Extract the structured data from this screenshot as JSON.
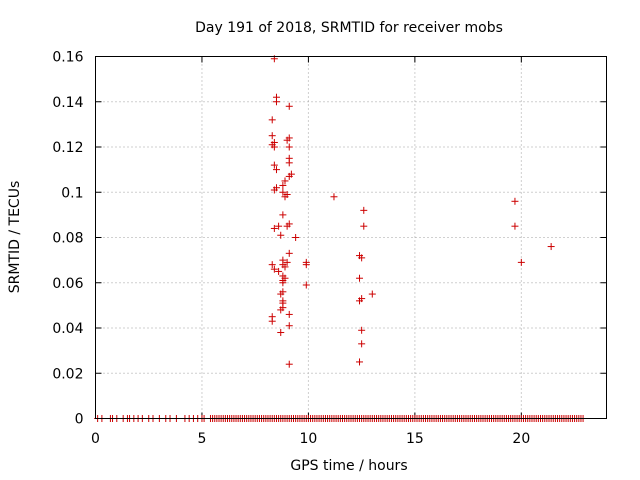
{
  "chart_data": {
    "type": "scatter",
    "title": "Day 191 of 2018, SRMTID for receiver mobs",
    "xlabel": "GPS time / hours",
    "ylabel": "SRMTID / TECUs",
    "xlim": [
      0,
      24
    ],
    "ylim": [
      0,
      0.16
    ],
    "x_ticks": [
      0,
      5,
      10,
      15,
      20
    ],
    "x_tick_labels": [
      "0",
      "5",
      "10",
      "15",
      "20"
    ],
    "y_ticks": [
      0,
      0.02,
      0.04,
      0.06,
      0.08,
      0.1,
      0.12,
      0.14,
      0.16
    ],
    "y_tick_labels": [
      "0",
      "0.02",
      "0.04",
      "0.06",
      "0.08",
      "0.1",
      "0.12",
      "0.14",
      "0.16"
    ],
    "grid": true,
    "marker": "plus",
    "marker_color": "#cc0000",
    "series": [
      {
        "name": "SRMTID",
        "points": [
          [
            8.4,
            0.159
          ],
          [
            8.5,
            0.142
          ],
          [
            8.5,
            0.14
          ],
          [
            9.1,
            0.138
          ],
          [
            8.3,
            0.132
          ],
          [
            8.3,
            0.125
          ],
          [
            8.4,
            0.122
          ],
          [
            8.3,
            0.121
          ],
          [
            8.4,
            0.12
          ],
          [
            9.1,
            0.124
          ],
          [
            9.0,
            0.123
          ],
          [
            9.1,
            0.12
          ],
          [
            9.1,
            0.115
          ],
          [
            9.1,
            0.113
          ],
          [
            8.4,
            0.112
          ],
          [
            8.5,
            0.11
          ],
          [
            9.2,
            0.108
          ],
          [
            9.1,
            0.107
          ],
          [
            8.9,
            0.105
          ],
          [
            8.8,
            0.103
          ],
          [
            8.5,
            0.102
          ],
          [
            8.4,
            0.101
          ],
          [
            8.8,
            0.1
          ],
          [
            9.0,
            0.099
          ],
          [
            8.9,
            0.098
          ],
          [
            11.2,
            0.098
          ],
          [
            19.7,
            0.096
          ],
          [
            12.6,
            0.092
          ],
          [
            8.8,
            0.09
          ],
          [
            8.6,
            0.085
          ],
          [
            9.1,
            0.086
          ],
          [
            9.0,
            0.085
          ],
          [
            8.4,
            0.084
          ],
          [
            12.6,
            0.085
          ],
          [
            19.7,
            0.085
          ],
          [
            8.7,
            0.081
          ],
          [
            9.4,
            0.08
          ],
          [
            21.4,
            0.076
          ],
          [
            9.1,
            0.073
          ],
          [
            12.4,
            0.072
          ],
          [
            12.5,
            0.071
          ],
          [
            20.0,
            0.069
          ],
          [
            8.8,
            0.07
          ],
          [
            9.0,
            0.069
          ],
          [
            9.9,
            0.069
          ],
          [
            9.9,
            0.068
          ],
          [
            8.3,
            0.068
          ],
          [
            8.8,
            0.068
          ],
          [
            8.9,
            0.067
          ],
          [
            8.4,
            0.066
          ],
          [
            8.6,
            0.065
          ],
          [
            8.8,
            0.063
          ],
          [
            8.9,
            0.062
          ],
          [
            8.8,
            0.061
          ],
          [
            12.4,
            0.062
          ],
          [
            8.8,
            0.06
          ],
          [
            9.9,
            0.059
          ],
          [
            8.8,
            0.056
          ],
          [
            8.7,
            0.055
          ],
          [
            13.0,
            0.055
          ],
          [
            8.8,
            0.052
          ],
          [
            8.8,
            0.051
          ],
          [
            12.5,
            0.053
          ],
          [
            12.4,
            0.052
          ],
          [
            8.8,
            0.049
          ],
          [
            8.7,
            0.048
          ],
          [
            9.1,
            0.046
          ],
          [
            8.3,
            0.045
          ],
          [
            8.3,
            0.043
          ],
          [
            9.1,
            0.041
          ],
          [
            12.5,
            0.039
          ],
          [
            8.7,
            0.038
          ],
          [
            12.5,
            0.033
          ],
          [
            12.4,
            0.025
          ],
          [
            9.1,
            0.024
          ]
        ]
      }
    ],
    "baseline_zero_hours": [
      0.1,
      0.3,
      0.7,
      0.8,
      1.0,
      1.3,
      1.5,
      1.6,
      1.8,
      2.0,
      2.2,
      2.5,
      2.7,
      3.0,
      3.3,
      3.5,
      3.8,
      4.2,
      4.4,
      4.6,
      4.8,
      5.0,
      5.1,
      5.4,
      5.5,
      5.6,
      5.7,
      5.8,
      5.9,
      6.0,
      6.1,
      6.2,
      6.3,
      6.4,
      6.5,
      6.6,
      6.7,
      6.8,
      6.9,
      7.0,
      7.1,
      7.2,
      7.3,
      7.4,
      7.5,
      7.6,
      7.7,
      7.8,
      7.9,
      8.0,
      8.1,
      8.2,
      8.3,
      8.4,
      8.5,
      8.6,
      8.7,
      8.8,
      8.9,
      9.0,
      9.1,
      9.2,
      9.3,
      9.4,
      9.5,
      9.6,
      9.7,
      9.8,
      9.9,
      10.0,
      10.1,
      10.2,
      10.3,
      10.4,
      10.5,
      10.6,
      10.7,
      10.8,
      10.9,
      11.0,
      11.1,
      11.2,
      11.3,
      11.4,
      11.5,
      11.6,
      11.7,
      11.8,
      11.9,
      12.0,
      12.1,
      12.2,
      12.3,
      12.4,
      12.5,
      12.6,
      12.7,
      12.8,
      12.9,
      13.0,
      13.1,
      13.2,
      13.3,
      13.4,
      13.5,
      13.6,
      13.7,
      13.8,
      13.9,
      14.0,
      14.1,
      14.2,
      14.3,
      14.4,
      14.5,
      14.6,
      14.7,
      14.8,
      14.9,
      15.0,
      15.1,
      15.2,
      15.3,
      15.4,
      15.5,
      15.6,
      15.7,
      15.8,
      15.9,
      16.0,
      16.1,
      16.2,
      16.3,
      16.4,
      16.5,
      16.6,
      16.7,
      16.8,
      16.9,
      17.0,
      17.1,
      17.2,
      17.3,
      17.4,
      17.5,
      17.6,
      17.7,
      17.8,
      17.9,
      18.0,
      18.1,
      18.2,
      18.3,
      18.4,
      18.5,
      18.6,
      18.7,
      18.8,
      18.9,
      19.0,
      19.1,
      19.2,
      19.3,
      19.4,
      19.5,
      19.6,
      19.7,
      19.8,
      19.9,
      20.0,
      20.1,
      20.2,
      20.3,
      20.4,
      20.5,
      20.6,
      20.7,
      20.8,
      20.9,
      21.0,
      21.1,
      21.2,
      21.3,
      21.4,
      21.5,
      21.6,
      21.7,
      21.8,
      21.9,
      22.0,
      22.1,
      22.2,
      22.3,
      22.4,
      22.5,
      22.6,
      22.7,
      22.8,
      22.9
    ]
  }
}
